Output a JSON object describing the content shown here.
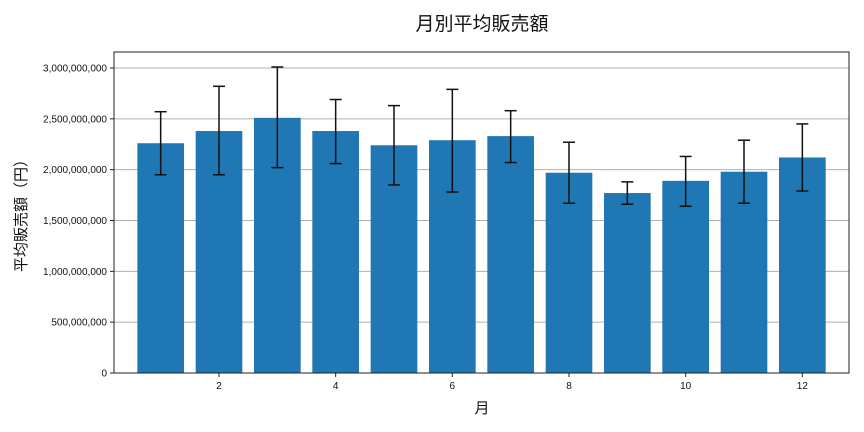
{
  "chart_data": {
    "type": "bar",
    "title": "月別平均販売額",
    "xlabel": "月",
    "ylabel": "平均販売額（円）",
    "categories": [
      1,
      2,
      3,
      4,
      5,
      6,
      7,
      8,
      9,
      10,
      11,
      12
    ],
    "values": [
      2260000000,
      2380000000,
      2510000000,
      2380000000,
      2240000000,
      2290000000,
      2330000000,
      1970000000,
      1770000000,
      1890000000,
      1980000000,
      2120000000
    ],
    "error_low": [
      1950000000,
      1950000000,
      2020000000,
      2060000000,
      1850000000,
      1780000000,
      2070000000,
      1670000000,
      1660000000,
      1640000000,
      1670000000,
      1790000000
    ],
    "error_high": [
      2570000000,
      2820000000,
      3010000000,
      2690000000,
      2630000000,
      2790000000,
      2580000000,
      2270000000,
      1880000000,
      2130000000,
      2290000000,
      2450000000
    ],
    "xticks": [
      2,
      4,
      6,
      8,
      10,
      12
    ],
    "yticks": [
      0,
      500000000,
      1000000000,
      1500000000,
      2000000000,
      2500000000,
      3000000000
    ],
    "ytick_labels": [
      "0",
      "500,000,000",
      "1,000,000,000",
      "1,500,000,000",
      "2,000,000,000",
      "2,500,000,000",
      "3,000,000,000"
    ],
    "ylim": [
      0,
      3150000000
    ],
    "xlim": [
      0.2,
      12.8
    ],
    "grid": "y",
    "bar_color": "#1f77b4",
    "error_color": "#111111"
  }
}
